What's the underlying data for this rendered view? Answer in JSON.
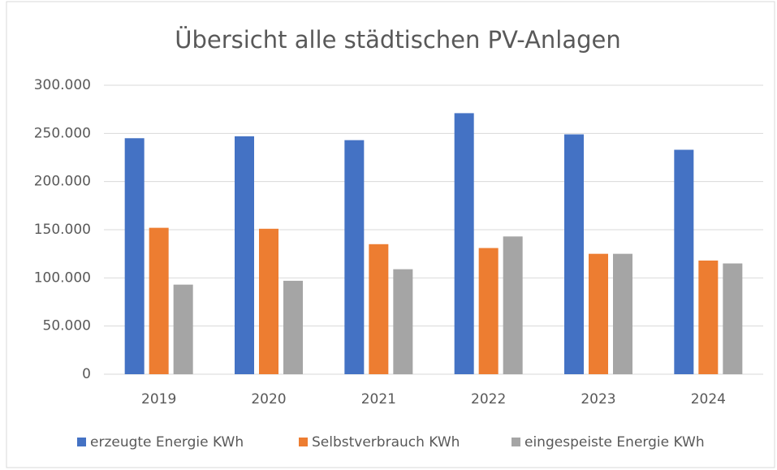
{
  "chart_data": {
    "type": "bar",
    "title": "Übersicht alle städtischen PV-Anlagen",
    "categories": [
      "2019",
      "2020",
      "2021",
      "2022",
      "2023",
      "2024"
    ],
    "series": [
      {
        "name": "erzeugte Energie KWh",
        "color": "#4472c4",
        "values": [
          245000,
          247000,
          243000,
          271000,
          249000,
          233000
        ]
      },
      {
        "name": "Selbstverbrauch KWh",
        "color": "#ed7d31",
        "values": [
          152000,
          151000,
          135000,
          131000,
          125000,
          118000
        ]
      },
      {
        "name": "eingespeiste Energie KWh",
        "color": "#a5a5a5",
        "values": [
          93000,
          97000,
          109000,
          143000,
          125000,
          115000
        ]
      }
    ],
    "ylim": [
      0,
      300000
    ],
    "yticks": [
      0,
      {
        "value": 50000,
        "label": "50.000"
      },
      {
        "value": 100000,
        "label": "100.000"
      },
      {
        "value": 150000,
        "label": "150.000"
      },
      {
        "value": 200000,
        "label": "200.000"
      },
      {
        "value": 250000,
        "label": "250.000"
      },
      {
        "value": 300000,
        "label": "300.000"
      }
    ],
    "grid": true,
    "legend": "bottom"
  }
}
